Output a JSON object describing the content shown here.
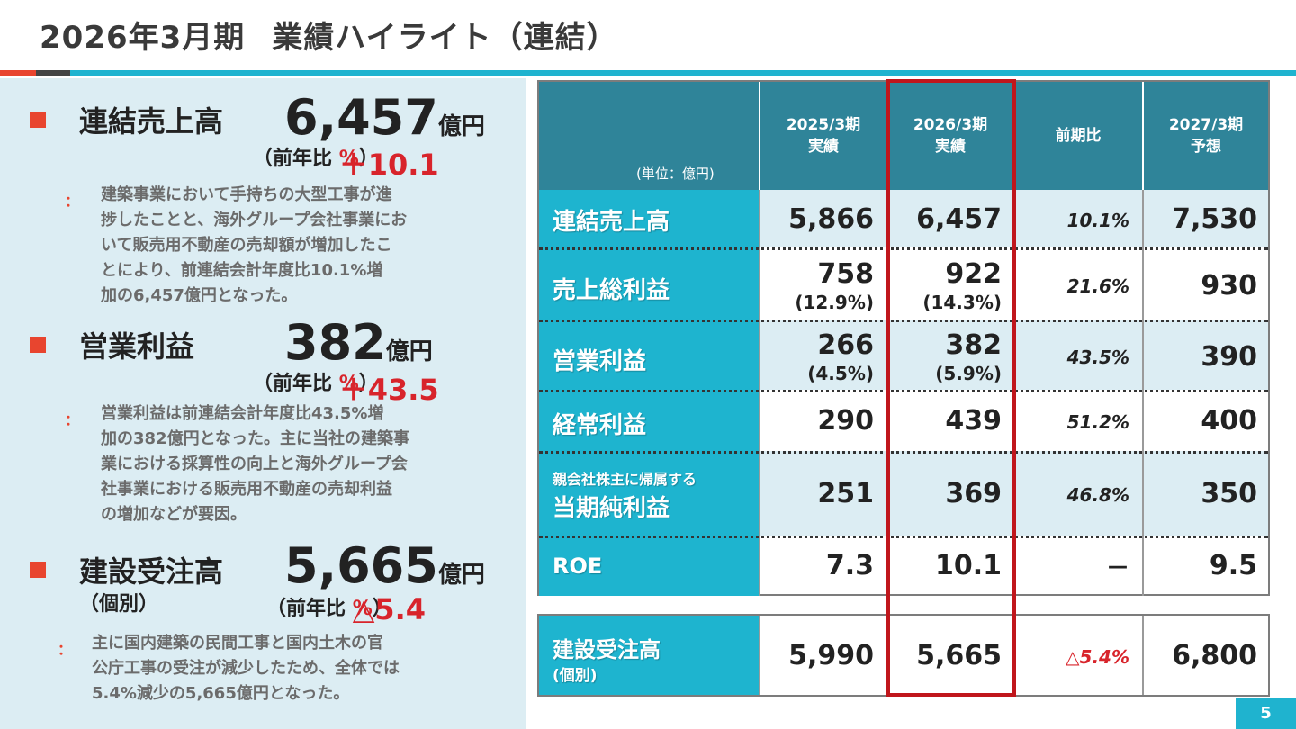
{
  "title": {
    "period": "2026年3月期",
    "main": "業績ハイライト（連結）"
  },
  "left": {
    "sales": {
      "label": "連結売上高",
      "value": "6,457",
      "unit": "億円",
      "change_prefix": "（前年比",
      "change_value": "＋10.1",
      "change_pct": "%",
      "change_suffix": "）",
      "colon": "：",
      "desc": [
        "建築事業において手持ちの大型工事が進",
        "捗したことと、海外グループ会社事業にお",
        "いて販売用不動産の売却額が増加したこ",
        "とにより、前連結会計年度比10.1%増",
        "加の6,457億円となった。"
      ]
    },
    "op": {
      "label": "営業利益",
      "value": "382",
      "unit": "億円",
      "change_prefix": "（前年比",
      "change_value": "＋43.5",
      "change_pct": "%",
      "change_suffix": "）",
      "colon": "：",
      "desc": [
        "営業利益は前連結会計年度比43.5%増",
        "加の382億円となった。主に当社の建築事",
        "業における採算性の向上と海外グループ会",
        "社事業における販売用不動産の売却利益",
        "の増加などが要因。"
      ]
    },
    "orders": {
      "label": "建設受注高",
      "sub": "（個別）",
      "value": "5,665",
      "unit": "億円",
      "change_prefix": "（前年比",
      "change_value": "△5.4",
      "change_pct": "%",
      "change_suffix": "）",
      "colon": "：",
      "desc": [
        "主に国内建築の民間工事と国内土木の官",
        "公庁工事の受注が減少したため、全体では",
        "5.4%減少の5,665億円となった。"
      ]
    }
  },
  "table": {
    "unit_note": "(単位：億円)",
    "headers": [
      [
        "2025/3期",
        "実績"
      ],
      [
        "2026/3期",
        "実績"
      ],
      [
        "前期比",
        ""
      ],
      [
        "2027/3期",
        "予想"
      ]
    ],
    "rows": [
      {
        "label": "連結売上高",
        "prev": "5,866",
        "prev_pct": "",
        "cur": "6,457",
        "cur_pct": "",
        "ratio": "10.1%",
        "fcst": "7,530"
      },
      {
        "label": "売上総利益",
        "prev": "758",
        "prev_pct": "(12.9%)",
        "cur": "922",
        "cur_pct": "(14.3%)",
        "ratio": "21.6%",
        "fcst": "930"
      },
      {
        "label": "営業利益",
        "prev": "266",
        "prev_pct": "(4.5%)",
        "cur": "382",
        "cur_pct": "(5.9%)",
        "ratio": "43.5%",
        "fcst": "390"
      },
      {
        "label": "経常利益",
        "prev": "290",
        "prev_pct": "",
        "cur": "439",
        "cur_pct": "",
        "ratio": "51.2%",
        "fcst": "400"
      },
      {
        "label_small": "親会社株主に帰属する",
        "label": "当期純利益",
        "prev": "251",
        "prev_pct": "",
        "cur": "369",
        "cur_pct": "",
        "ratio": "46.8%",
        "fcst": "350"
      },
      {
        "label": "ROE",
        "prev": "7.3",
        "prev_pct": "",
        "cur": "10.1",
        "cur_pct": "",
        "ratio": "－",
        "fcst": "9.5"
      }
    ],
    "orders_row": {
      "label": "建設受注高",
      "label_sub": "(個別)",
      "prev": "5,990",
      "cur": "5,665",
      "ratio": "△5.4%",
      "fcst": "6,800"
    }
  },
  "page_number": "5",
  "colors": {
    "accent_red": "#e8452f",
    "teal": "#1fb3cf",
    "header_teal": "#2f8499",
    "highlight_red": "#c0161c",
    "panel": "#dcedf3"
  }
}
